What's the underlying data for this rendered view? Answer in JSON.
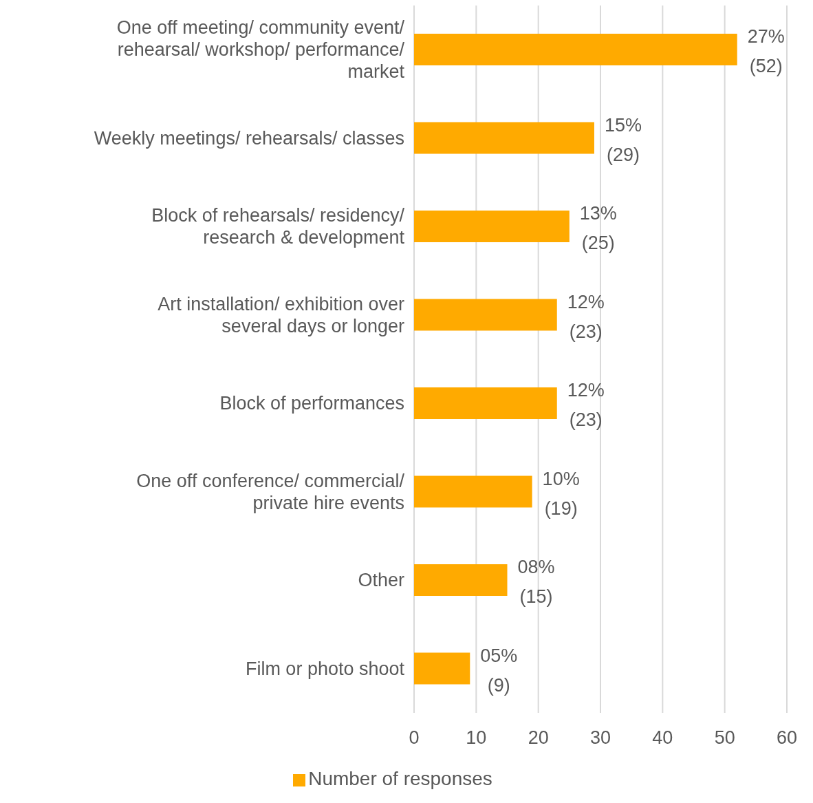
{
  "chart_data": {
    "type": "bar",
    "orientation": "horizontal",
    "categories": [
      "One off meeting/ community event/ rehearsal/ workshop/ performance/ market",
      "Weekly meetings/ rehearsals/ classes",
      "Block of rehearsals/ residency/ research & development",
      "Art installation/ exhibition over several days or longer",
      "Block of performances",
      "One off conference/ commercial/ private hire events",
      "Other",
      "Film or photo shoot"
    ],
    "series": [
      {
        "name": "Number of responses",
        "color": "#ffaa00",
        "values": [
          52,
          29,
          25,
          23,
          23,
          19,
          15,
          9
        ],
        "value_labels": [
          "27%\n(52)",
          "15%\n(29)",
          "13%\n(25)",
          "12%\n(23)",
          "12%\n(23)",
          "10%\n(19)",
          "08%\n(15)",
          "05%\n(9)"
        ]
      }
    ],
    "xlim": [
      0,
      60
    ],
    "xticks": [
      0,
      10,
      20,
      30,
      40,
      50,
      60
    ],
    "grid": "x",
    "legend": "bottom"
  }
}
